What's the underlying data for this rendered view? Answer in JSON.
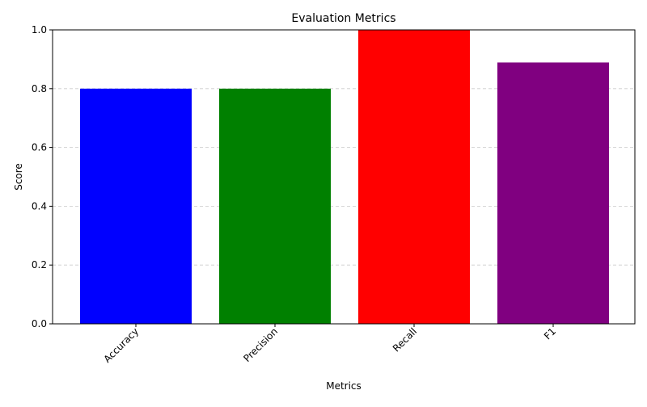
{
  "chart_data": {
    "type": "bar",
    "title": "Evaluation Metrics",
    "xlabel": "Metrics",
    "ylabel": "Score",
    "categories": [
      "Accuracy",
      "Precision",
      "Recall",
      "F1"
    ],
    "values": [
      0.8,
      0.8,
      1.0,
      0.889
    ],
    "colors": [
      "#0000ff",
      "#008000",
      "#ff0000",
      "#800080"
    ],
    "ylim": [
      0,
      1.0
    ],
    "yticks": [
      "0.0",
      "0.2",
      "0.4",
      "0.6",
      "0.8",
      "1.0"
    ],
    "grid": {
      "axis": "y",
      "style": "dashed",
      "color": "#cccccc"
    },
    "tick_label_rotation_deg": 45,
    "legend": "none"
  }
}
